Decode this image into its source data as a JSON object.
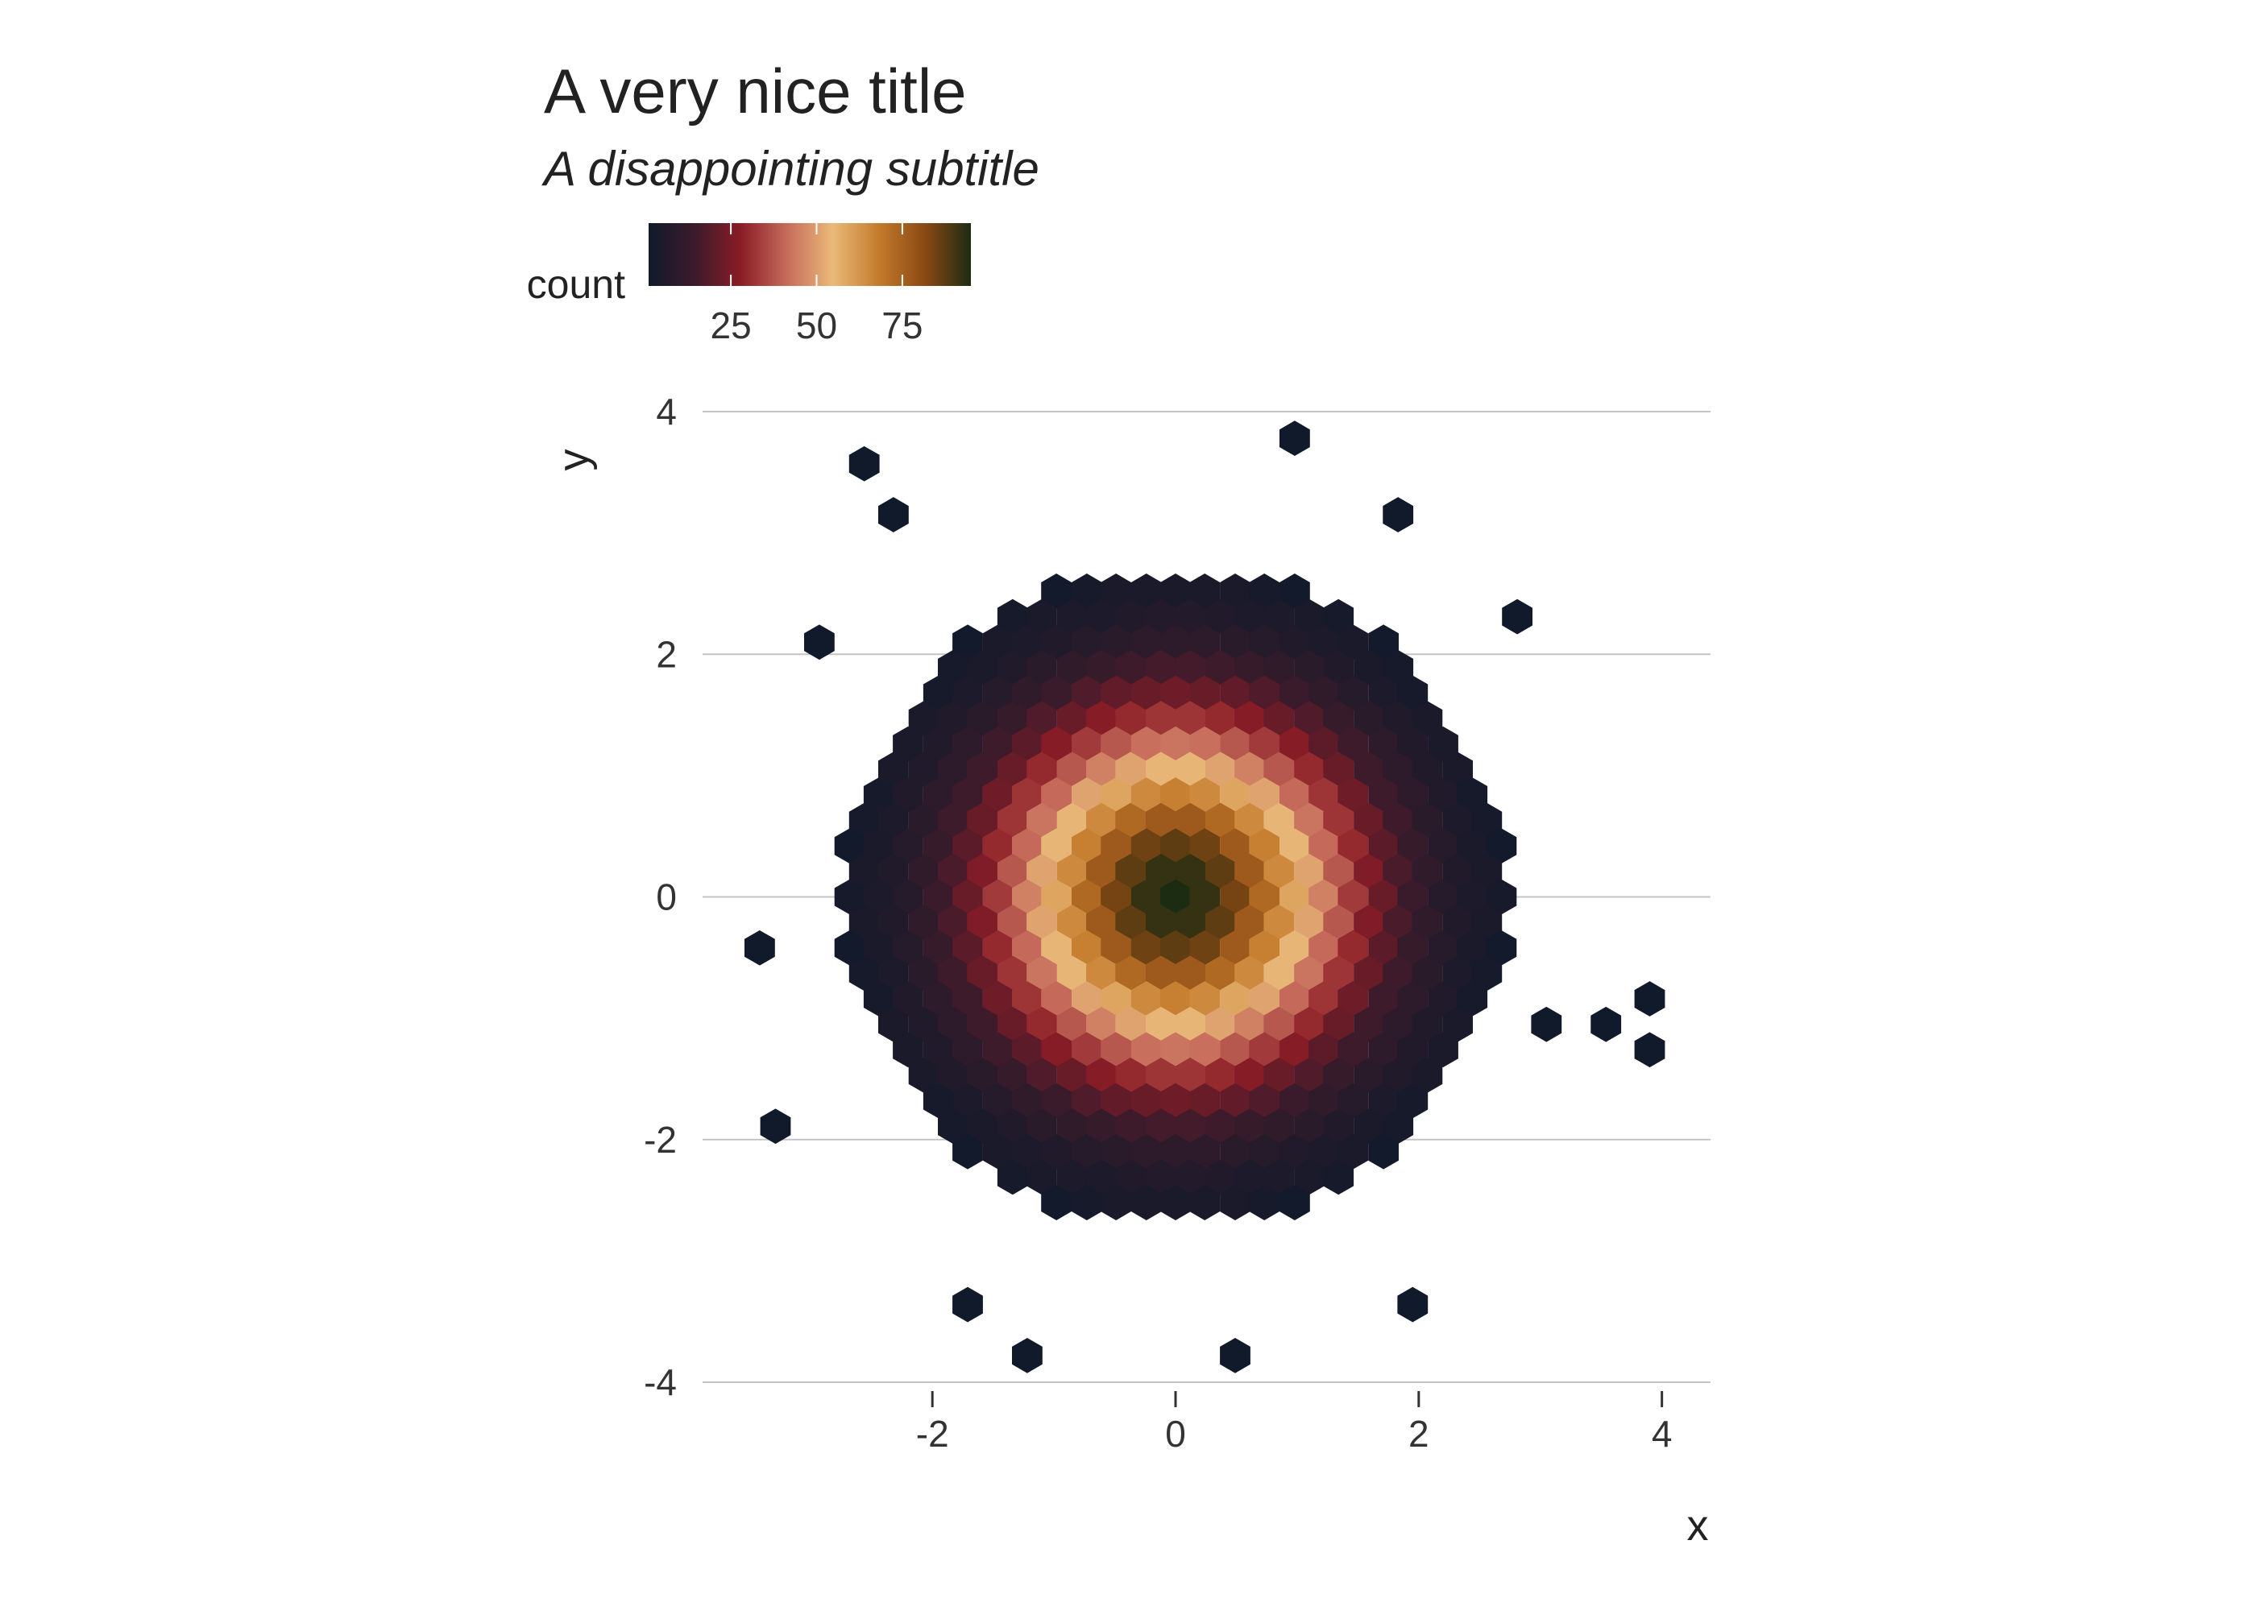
{
  "chart_data": {
    "type": "hexbin",
    "title": "A very nice title",
    "subtitle": "A disappointing subtitle",
    "x_label": "x",
    "y_label": "y",
    "xlim": [
      -3.89,
      4.4
    ],
    "ylim": [
      -4,
      4
    ],
    "xticks": [
      -2,
      0,
      2,
      4
    ],
    "yticks": [
      -4,
      -2,
      0,
      2,
      4
    ],
    "grid": true,
    "color_scale": {
      "title": "count",
      "limits": [
        1,
        95
      ],
      "ticks": [
        25,
        50,
        75
      ],
      "colors": [
        "#101a2b",
        "#3b1b2b",
        "#8a1c26",
        "#c66b5b",
        "#e9b978",
        "#c47b2c",
        "#8a4913",
        "#1c2c13"
      ]
    },
    "rows": [
      {
        "y": 2.52,
        "x": [
          -0.98,
          -0.73,
          -0.49,
          -0.24,
          0,
          0.24,
          0.49,
          0.73,
          0.98
        ],
        "values": [
          2,
          3,
          4,
          4,
          4,
          4,
          4,
          3,
          2
        ]
      },
      {
        "y": 2.31,
        "x": [
          -1.34,
          -1.1,
          -0.85,
          -0.61,
          -0.37,
          -0.12,
          0.12,
          0.37,
          0.61,
          0.85,
          1.1,
          1.34
        ],
        "values": [
          3,
          4,
          5,
          5,
          6,
          7,
          7,
          6,
          5,
          5,
          4,
          3
        ]
      },
      {
        "y": 2.1,
        "x": [
          -1.71,
          -1.46,
          -1.22,
          -0.98,
          -0.73,
          -0.49,
          -0.24,
          0,
          0.24,
          0.49,
          0.73,
          0.98,
          1.22,
          1.46,
          1.71
        ],
        "values": [
          2,
          4,
          5,
          6,
          8,
          9,
          10,
          10,
          10,
          9,
          8,
          6,
          5,
          4,
          2
        ]
      },
      {
        "y": 1.89,
        "x": [
          -1.83,
          -1.59,
          -1.34,
          -1.1,
          -0.85,
          -0.61,
          -0.37,
          -0.12,
          0.12,
          0.37,
          0.61,
          0.85,
          1.1,
          1.34,
          1.59,
          1.83
        ],
        "values": [
          3,
          4,
          6,
          9,
          11,
          13,
          15,
          16,
          16,
          15,
          13,
          11,
          9,
          6,
          4,
          3
        ]
      },
      {
        "y": 1.68,
        "x": [
          -1.95,
          -1.71,
          -1.46,
          -1.22,
          -0.98,
          -0.73,
          -0.49,
          -0.24,
          0,
          0.24,
          0.49,
          0.73,
          0.98,
          1.22,
          1.46,
          1.71,
          1.95
        ],
        "values": [
          3,
          5,
          8,
          11,
          14,
          18,
          21,
          22,
          23,
          22,
          21,
          18,
          14,
          11,
          8,
          5,
          3
        ]
      },
      {
        "y": 1.47,
        "x": [
          -2.07,
          -1.83,
          -1.59,
          -1.34,
          -1.1,
          -0.85,
          -0.61,
          -0.37,
          -0.12,
          0.12,
          0.37,
          0.61,
          0.85,
          1.1,
          1.34,
          1.59,
          1.83,
          2.07
        ],
        "values": [
          4,
          6,
          9,
          13,
          18,
          22,
          27,
          30,
          32,
          32,
          30,
          27,
          22,
          18,
          13,
          9,
          6,
          4
        ]
      },
      {
        "y": 1.26,
        "x": [
          -2.2,
          -1.95,
          -1.71,
          -1.46,
          -1.22,
          -0.98,
          -0.73,
          -0.49,
          -0.24,
          0,
          0.24,
          0.49,
          0.73,
          0.98,
          1.22,
          1.46,
          1.71,
          1.95,
          2.2
        ],
        "values": [
          4,
          6,
          10,
          15,
          20,
          27,
          33,
          38,
          42,
          43,
          42,
          38,
          33,
          27,
          20,
          15,
          10,
          6,
          4
        ]
      },
      {
        "y": 1.05,
        "x": [
          -2.32,
          -2.07,
          -1.83,
          -1.59,
          -1.34,
          -1.1,
          -0.85,
          -0.61,
          -0.37,
          -0.12,
          0.12,
          0.37,
          0.61,
          0.85,
          1.1,
          1.34,
          1.59,
          1.83,
          2.07,
          2.32
        ],
        "values": [
          4,
          6,
          10,
          15,
          22,
          30,
          38,
          45,
          51,
          54,
          54,
          51,
          45,
          38,
          30,
          22,
          15,
          10,
          6,
          4
        ]
      },
      {
        "y": 0.84,
        "x": [
          -2.44,
          -2.2,
          -1.95,
          -1.71,
          -1.46,
          -1.22,
          -0.98,
          -0.73,
          -0.49,
          -0.24,
          0,
          0.24,
          0.49,
          0.73,
          0.98,
          1.22,
          1.46,
          1.71,
          1.95,
          2.2,
          2.44
        ],
        "values": [
          3,
          6,
          10,
          15,
          23,
          32,
          41,
          51,
          59,
          65,
          67,
          65,
          59,
          51,
          41,
          32,
          23,
          15,
          10,
          6,
          3
        ]
      },
      {
        "y": 0.63,
        "x": [
          -2.56,
          -2.32,
          -2.07,
          -1.83,
          -1.59,
          -1.34,
          -1.1,
          -0.85,
          -0.61,
          -0.37,
          -0.12,
          0.12,
          0.37,
          0.61,
          0.85,
          1.1,
          1.34,
          1.59,
          1.83,
          2.07,
          2.32,
          2.56
        ],
        "values": [
          3,
          5,
          9,
          15,
          22,
          32,
          43,
          54,
          65,
          73,
          77,
          77,
          73,
          65,
          54,
          43,
          32,
          22,
          15,
          9,
          5,
          3
        ]
      },
      {
        "y": 0.42,
        "x": [
          -2.68,
          -2.44,
          -2.2,
          -1.95,
          -1.71,
          -1.46,
          -1.22,
          -0.98,
          -0.73,
          -0.49,
          -0.24,
          0,
          0.24,
          0.49,
          0.73,
          0.98,
          1.22,
          1.46,
          1.71,
          1.95,
          2.2,
          2.44,
          2.68
        ],
        "values": [
          2,
          4,
          8,
          13,
          20,
          30,
          41,
          54,
          67,
          77,
          85,
          87,
          85,
          77,
          67,
          54,
          41,
          30,
          20,
          13,
          8,
          4,
          2
        ]
      },
      {
        "y": 0.21,
        "x": [
          -2.56,
          -2.32,
          -2.07,
          -1.83,
          -1.59,
          -1.34,
          -1.1,
          -0.85,
          -0.61,
          -0.37,
          -0.12,
          0.12,
          0.37,
          0.61,
          0.85,
          1.1,
          1.34,
          1.59,
          1.83,
          2.07,
          2.32,
          2.56
        ],
        "values": [
          4,
          6,
          11,
          17,
          26,
          38,
          51,
          65,
          77,
          87,
          92,
          92,
          87,
          77,
          65,
          51,
          38,
          26,
          17,
          11,
          6,
          4
        ]
      },
      {
        "y": 0,
        "x": [
          -2.68,
          -2.44,
          -2.2,
          -1.95,
          -1.71,
          -1.46,
          -1.22,
          -0.98,
          -0.73,
          -0.49,
          -0.24,
          0,
          0.24,
          0.49,
          0.73,
          0.98,
          1.22,
          1.46,
          1.71,
          1.95,
          2.2,
          2.44,
          2.68
        ],
        "values": [
          3,
          5,
          8,
          14,
          22,
          33,
          45,
          59,
          73,
          84,
          92,
          95,
          92,
          84,
          73,
          59,
          45,
          33,
          22,
          14,
          8,
          5,
          3
        ]
      },
      {
        "y": -0.21,
        "x": [
          -2.56,
          -2.32,
          -2.07,
          -1.83,
          -1.59,
          -1.34,
          -1.1,
          -0.85,
          -0.61,
          -0.37,
          -0.12,
          0.12,
          0.37,
          0.61,
          0.85,
          1.1,
          1.34,
          1.59,
          1.83,
          2.07,
          2.32,
          2.56
        ],
        "values": [
          4,
          6,
          11,
          17,
          26,
          38,
          51,
          65,
          77,
          87,
          92,
          92,
          87,
          77,
          65,
          51,
          38,
          26,
          17,
          11,
          6,
          4
        ]
      },
      {
        "y": -0.42,
        "x": [
          -2.68,
          -2.44,
          -2.2,
          -1.95,
          -1.71,
          -1.46,
          -1.22,
          -0.98,
          -0.73,
          -0.49,
          -0.24,
          0,
          0.24,
          0.49,
          0.73,
          0.98,
          1.22,
          1.46,
          1.71,
          1.95,
          2.2,
          2.44,
          2.68
        ],
        "values": [
          2,
          4,
          8,
          13,
          20,
          30,
          41,
          54,
          67,
          77,
          85,
          87,
          85,
          77,
          67,
          54,
          41,
          30,
          20,
          13,
          8,
          4,
          2
        ]
      },
      {
        "y": -0.63,
        "x": [
          -2.56,
          -2.32,
          -2.07,
          -1.83,
          -1.59,
          -1.34,
          -1.1,
          -0.85,
          -0.61,
          -0.37,
          -0.12,
          0.12,
          0.37,
          0.61,
          0.85,
          1.1,
          1.34,
          1.59,
          1.83,
          2.07,
          2.32,
          2.56
        ],
        "values": [
          3,
          5,
          9,
          15,
          22,
          32,
          43,
          54,
          65,
          73,
          77,
          77,
          73,
          65,
          54,
          43,
          32,
          22,
          15,
          9,
          5,
          3
        ]
      },
      {
        "y": -0.84,
        "x": [
          -2.44,
          -2.2,
          -1.95,
          -1.71,
          -1.46,
          -1.22,
          -0.98,
          -0.73,
          -0.49,
          -0.24,
          0,
          0.24,
          0.49,
          0.73,
          0.98,
          1.22,
          1.46,
          1.71,
          1.95,
          2.2,
          2.44
        ],
        "values": [
          3,
          6,
          10,
          15,
          23,
          32,
          41,
          51,
          59,
          65,
          67,
          65,
          59,
          51,
          41,
          32,
          23,
          15,
          10,
          6,
          3
        ]
      },
      {
        "y": -1.05,
        "x": [
          -2.32,
          -2.07,
          -1.83,
          -1.59,
          -1.34,
          -1.1,
          -0.85,
          -0.61,
          -0.37,
          -0.12,
          0.12,
          0.37,
          0.61,
          0.85,
          1.1,
          1.34,
          1.59,
          1.83,
          2.07,
          2.32
        ],
        "values": [
          4,
          6,
          10,
          15,
          22,
          30,
          38,
          45,
          51,
          54,
          54,
          51,
          45,
          38,
          30,
          22,
          15,
          10,
          6,
          4
        ]
      },
      {
        "y": -1.26,
        "x": [
          -2.2,
          -1.95,
          -1.71,
          -1.46,
          -1.22,
          -0.98,
          -0.73,
          -0.49,
          -0.24,
          0,
          0.24,
          0.49,
          0.73,
          0.98,
          1.22,
          1.46,
          1.71,
          1.95,
          2.2
        ],
        "values": [
          4,
          6,
          10,
          15,
          20,
          27,
          33,
          38,
          42,
          43,
          42,
          38,
          33,
          27,
          20,
          15,
          10,
          6,
          4
        ]
      },
      {
        "y": -1.47,
        "x": [
          -2.07,
          -1.83,
          -1.59,
          -1.34,
          -1.1,
          -0.85,
          -0.61,
          -0.37,
          -0.12,
          0.12,
          0.37,
          0.61,
          0.85,
          1.1,
          1.34,
          1.59,
          1.83,
          2.07
        ],
        "values": [
          4,
          6,
          9,
          13,
          18,
          22,
          27,
          30,
          32,
          32,
          30,
          27,
          22,
          18,
          13,
          9,
          6,
          4
        ]
      },
      {
        "y": -1.68,
        "x": [
          -1.95,
          -1.71,
          -1.46,
          -1.22,
          -0.98,
          -0.73,
          -0.49,
          -0.24,
          0,
          0.24,
          0.49,
          0.73,
          0.98,
          1.22,
          1.46,
          1.71,
          1.95
        ],
        "values": [
          3,
          5,
          8,
          11,
          14,
          18,
          21,
          22,
          23,
          22,
          21,
          18,
          14,
          11,
          8,
          5,
          3
        ]
      },
      {
        "y": -1.89,
        "x": [
          -1.83,
          -1.59,
          -1.34,
          -1.1,
          -0.85,
          -0.61,
          -0.37,
          -0.12,
          0.12,
          0.37,
          0.61,
          0.85,
          1.1,
          1.34,
          1.59,
          1.83
        ],
        "values": [
          3,
          4,
          6,
          9,
          11,
          13,
          15,
          16,
          16,
          15,
          13,
          11,
          9,
          6,
          4,
          3
        ]
      },
      {
        "y": -2.1,
        "x": [
          -1.71,
          -1.46,
          -1.22,
          -0.98,
          -0.73,
          -0.49,
          -0.24,
          0,
          0.24,
          0.49,
          0.73,
          0.98,
          1.22,
          1.46,
          1.71
        ],
        "values": [
          2,
          4,
          5,
          6,
          8,
          9,
          10,
          10,
          10,
          9,
          8,
          6,
          5,
          4,
          2
        ]
      },
      {
        "y": -2.31,
        "x": [
          -1.34,
          -1.1,
          -0.85,
          -0.61,
          -0.37,
          -0.12,
          0.12,
          0.37,
          0.61,
          0.85,
          1.1,
          1.34
        ],
        "values": [
          3,
          4,
          5,
          5,
          6,
          7,
          7,
          6,
          5,
          5,
          4,
          3
        ]
      },
      {
        "y": -2.52,
        "x": [
          -0.98,
          -0.73,
          -0.49,
          -0.24,
          0,
          0.24,
          0.49,
          0.73,
          0.98
        ],
        "values": [
          2,
          3,
          4,
          4,
          4,
          4,
          4,
          3,
          2
        ]
      },
      {
        "y": 3.78,
        "x": [
          0.98
        ],
        "values": [
          1
        ]
      },
      {
        "y": 3.57,
        "x": [
          -2.56
        ],
        "values": [
          1
        ]
      },
      {
        "y": 3.15,
        "x": [
          -2.32,
          1.83
        ],
        "values": [
          1,
          1
        ]
      },
      {
        "y": 2.31,
        "x": [
          2.81
        ],
        "values": [
          1
        ]
      },
      {
        "y": 2.1,
        "x": [
          -2.93
        ],
        "values": [
          1
        ]
      },
      {
        "y": -0.42,
        "x": [
          -3.42
        ],
        "values": [
          1
        ]
      },
      {
        "y": -0.84,
        "x": [
          3.9
        ],
        "values": [
          1
        ]
      },
      {
        "y": -1.05,
        "x": [
          3.05,
          3.54
        ],
        "values": [
          1,
          1
        ]
      },
      {
        "y": -1.26,
        "x": [
          3.9
        ],
        "values": [
          1
        ]
      },
      {
        "y": -1.89,
        "x": [
          -3.29
        ],
        "values": [
          1
        ]
      },
      {
        "y": -3.36,
        "x": [
          -1.71,
          1.95
        ],
        "values": [
          1,
          1
        ]
      },
      {
        "y": -3.78,
        "x": [
          -1.22,
          0.49
        ],
        "values": [
          1,
          1
        ]
      }
    ]
  }
}
